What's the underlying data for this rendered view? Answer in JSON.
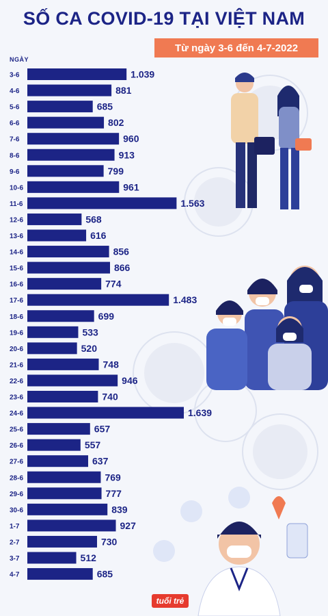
{
  "header": {
    "title": "SỐ CA COVID-19 TẠI VIỆT NAM",
    "subtitle": "Từ ngày 3-6 đến 4-7-2022"
  },
  "logo_text": "tuổi trẻ",
  "colors": {
    "bar": "#1c2486",
    "title": "#1c2486",
    "badge": "#f07a52",
    "background": "#f4f6fb"
  },
  "chart_data": {
    "type": "bar",
    "orientation": "horizontal",
    "title": "SỐ CA COVID-19 TẠI VIỆT NAM",
    "subtitle": "Từ ngày 3-6 đến 4-7-2022",
    "ylabel": "NGÀY",
    "xlabel": "",
    "xlim": [
      0,
      1700
    ],
    "grid": false,
    "legend": "none",
    "categories": [
      "3-6",
      "4-6",
      "5-6",
      "6-6",
      "7-6",
      "8-6",
      "9-6",
      "10-6",
      "11-6",
      "12-6",
      "13-6",
      "14-6",
      "15-6",
      "16-6",
      "17-6",
      "18-6",
      "19-6",
      "20-6",
      "21-6",
      "22-6",
      "23-6",
      "24-6",
      "25-6",
      "26-6",
      "27-6",
      "28-6",
      "29-6",
      "30-6",
      "1-7",
      "2-7",
      "3-7",
      "4-7"
    ],
    "values": [
      1039,
      881,
      685,
      802,
      960,
      913,
      799,
      961,
      1563,
      568,
      616,
      856,
      866,
      774,
      1483,
      699,
      533,
      520,
      748,
      946,
      740,
      1639,
      657,
      557,
      637,
      769,
      777,
      839,
      927,
      730,
      512,
      685
    ],
    "value_labels": [
      "1.039",
      "881",
      "685",
      "802",
      "960",
      "913",
      "799",
      "961",
      "1.563",
      "568",
      "616",
      "856",
      "866",
      "774",
      "1.483",
      "699",
      "533",
      "520",
      "748",
      "946",
      "740",
      "1.639",
      "657",
      "557",
      "637",
      "769",
      "777",
      "839",
      "927",
      "730",
      "512",
      "685"
    ]
  }
}
